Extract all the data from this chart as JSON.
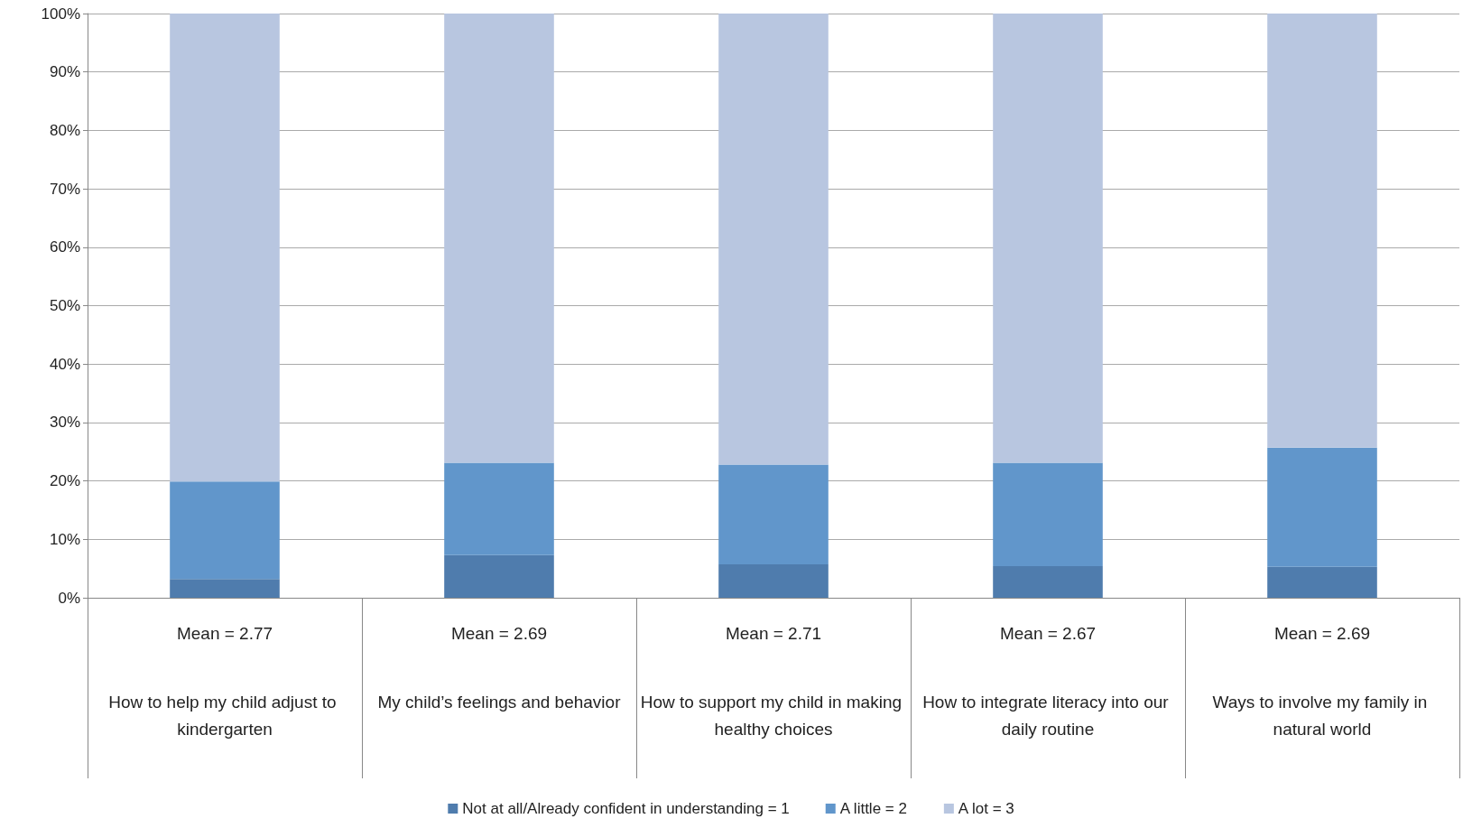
{
  "chart_data": {
    "type": "bar",
    "stacked": true,
    "categories": [
      "How to help my child adjust to kindergarten",
      "My child’s feelings and behavior",
      "How to support my child in making healthy choices",
      "How to integrate literacy into our daily routine",
      "Ways to involve my family in natural world"
    ],
    "annotations": [
      "Mean = 2.77",
      "Mean = 2.69",
      "Mean = 2.71",
      "Mean = 2.67",
      "Mean = 2.69"
    ],
    "series": [
      {
        "name": "Not at all/Already confident in understanding = 1",
        "color": "#4f7cad",
        "values": [
          3.2,
          7.3,
          5.7,
          5.4,
          5.3
        ]
      },
      {
        "name": "A little = 2",
        "color": "#6196cb",
        "values": [
          16.7,
          15.8,
          17.1,
          17.7,
          20.4
        ]
      },
      {
        "name": "A lot = 3",
        "color": "#b8c6e0",
        "values": [
          80.1,
          76.9,
          77.2,
          76.9,
          74.3
        ]
      }
    ],
    "ylim": [
      0,
      100
    ],
    "yticks": [
      {
        "value": 0,
        "label": "0%"
      },
      {
        "value": 10,
        "label": "10%"
      },
      {
        "value": 20,
        "label": "20%"
      },
      {
        "value": 30,
        "label": "30%"
      },
      {
        "value": 40,
        "label": "40%"
      },
      {
        "value": 50,
        "label": "50%"
      },
      {
        "value": 60,
        "label": "60%"
      },
      {
        "value": 70,
        "label": "70%"
      },
      {
        "value": 80,
        "label": "80%"
      },
      {
        "value": 90,
        "label": "90%"
      },
      {
        "value": 100,
        "label": "100%"
      }
    ],
    "grid": "y",
    "legend": "bottom"
  }
}
